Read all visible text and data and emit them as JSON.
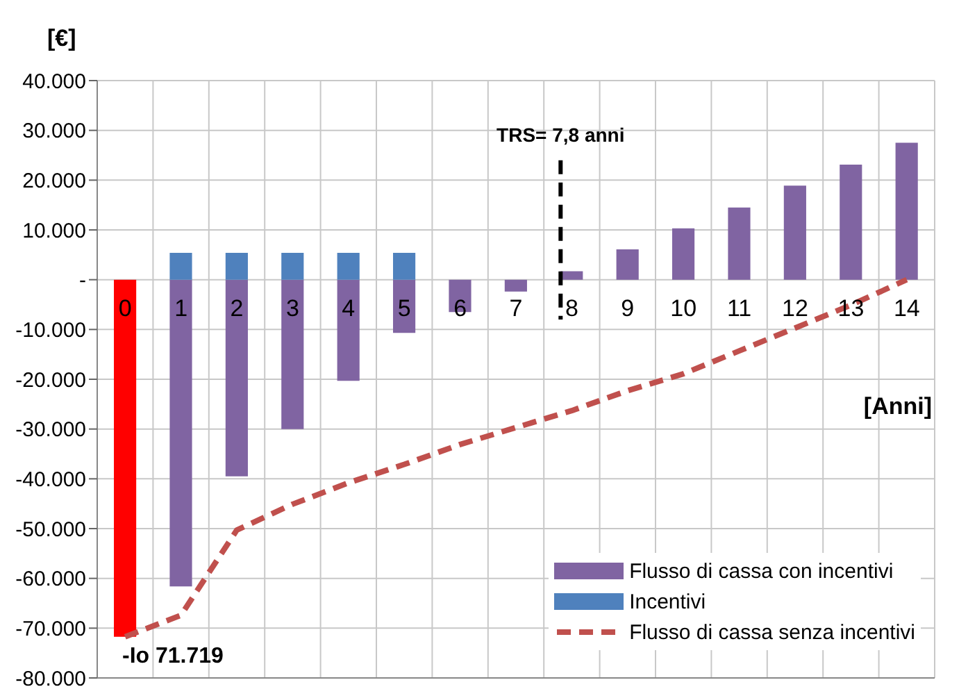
{
  "chart_data": {
    "type": "bar",
    "ylabel": "[€]",
    "xlabel": "[Anni]",
    "x": [
      0,
      1,
      2,
      3,
      4,
      5,
      6,
      7,
      8,
      9,
      10,
      11,
      12,
      13,
      14
    ],
    "xlim": [
      -0.5,
      14.5
    ],
    "xticks": [
      0,
      1,
      2,
      3,
      4,
      5,
      6,
      7,
      8,
      9,
      10,
      11,
      12,
      13,
      14
    ],
    "ylim": [
      -80000,
      40000
    ],
    "yticks": [
      {
        "value": -80000,
        "label": "-80.000"
      },
      {
        "value": -70000,
        "label": "-70.000"
      },
      {
        "value": -60000,
        "label": "-60.000"
      },
      {
        "value": -50000,
        "label": "-50.000"
      },
      {
        "value": -40000,
        "label": "-40.000"
      },
      {
        "value": -30000,
        "label": "-30.000"
      },
      {
        "value": -20000,
        "label": "-20.000"
      },
      {
        "value": -10000,
        "label": "-10.000"
      },
      {
        "value": 0,
        "label": "-"
      },
      {
        "value": 10000,
        "label": "10.000"
      },
      {
        "value": 20000,
        "label": "20.000"
      },
      {
        "value": 30000,
        "label": "30.000"
      },
      {
        "value": 40000,
        "label": "40.000"
      }
    ],
    "stacked": true,
    "grid": true,
    "legend": "bottom right",
    "series": [
      {
        "name": "Flusso di cassa con incentivi",
        "color": "#8064a2",
        "colors": [
          "#ff0000",
          "#8064a2",
          "#8064a2",
          "#8064a2",
          "#8064a2",
          "#8064a2",
          "#8064a2",
          "#8064a2",
          "#8064a2",
          "#8064a2",
          "#8064a2",
          "#8064a2",
          "#8064a2",
          "#8064a2",
          "#8064a2"
        ],
        "values": [
          -71719,
          -61600,
          -39500,
          -30000,
          -20300,
          -10700,
          -6500,
          -2400,
          1700,
          6100,
          10300,
          14500,
          18900,
          23100,
          27500
        ]
      },
      {
        "name": "Incentivi",
        "color": "#4f81bd",
        "values": [
          null,
          5400,
          5400,
          5400,
          5400,
          5400,
          null,
          null,
          null,
          null,
          null,
          null,
          null,
          null,
          null
        ]
      },
      {
        "name": "Flusso di cassa senza incentivi",
        "type": "line",
        "color": "#c0504d",
        "line_style": "dashed",
        "marker": "none",
        "values": [
          -71719,
          -67400,
          -50300,
          -45100,
          -40800,
          -37100,
          -33100,
          -29700,
          -26300,
          -22300,
          -18900,
          -14300,
          -9700,
          -5100,
          0
        ]
      }
    ],
    "ref_lines": [
      {
        "axis": "x",
        "value": 7.8,
        "label": "TRS= 7,8 anni",
        "color": "#000000",
        "line_style": "dashed"
      }
    ],
    "annotations": [
      "-Io 71.719"
    ]
  }
}
